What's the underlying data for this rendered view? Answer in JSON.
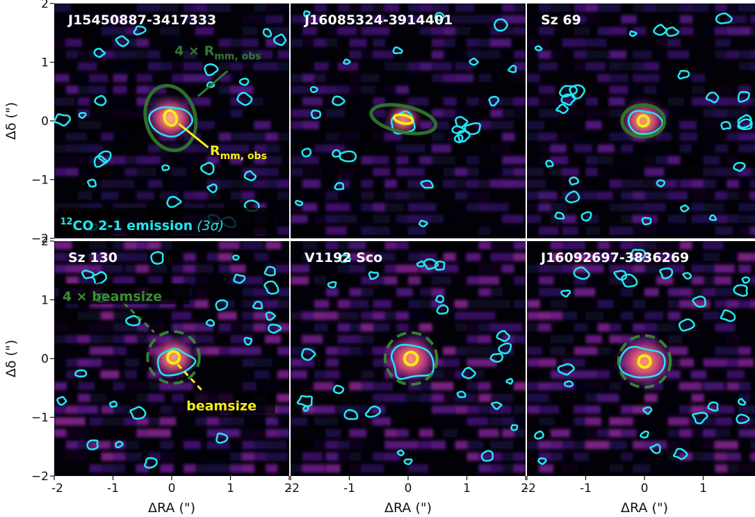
{
  "chart_data": {
    "type": "heatmap",
    "xlabel": "ΔRA (\")",
    "ylabel": "Δδ (\")",
    "xlim": [
      -2,
      2
    ],
    "ylim": [
      -2,
      2
    ],
    "x_ticks": [
      "-2",
      "-1",
      "0",
      "1",
      "2"
    ],
    "y_ticks": [
      "2",
      "1",
      "0",
      "−1",
      "−2"
    ],
    "colormap": "magma",
    "colors": {
      "contour": "#22e5f0",
      "r_obs": "#f5ee16",
      "r4_obs": "#2f7d2a",
      "beam4": "#3a8f2e",
      "beam": "#f5ee16"
    },
    "panels": [
      {
        "title": "J15450887-3417333",
        "source_x": -0.02,
        "source_y": 0.05,
        "peak": 1.0,
        "spread": 0.32,
        "r_obs": {
          "rx": 0.1,
          "ry": 0.13,
          "angle": 20
        },
        "outer": {
          "kind": "solid",
          "rx": 0.42,
          "ry": 0.56,
          "angle": 15
        },
        "annotations": [
          {
            "text": "4 × R",
            "sub": "mm, obs",
            "color": "#2f7d2a"
          },
          {
            "text": "R",
            "sub": "mm, obs",
            "color": "#f5ee16"
          },
          {
            "text": "CO 2-1 emission",
            "prefix": "12",
            "suffix": "(3σ)",
            "color": "#22e5f0"
          }
        ]
      },
      {
        "title": "J16085324-3914401",
        "source_x": -0.08,
        "source_y": 0.03,
        "peak": 0.95,
        "spread": 0.22,
        "r_obs": {
          "rx": 0.16,
          "ry": 0.07,
          "angle": -12
        },
        "outer": {
          "kind": "solid",
          "rx": 0.56,
          "ry": 0.22,
          "angle": -12
        },
        "annotations": []
      },
      {
        "title": "Sz 69",
        "source_x": -0.02,
        "source_y": 0.0,
        "peak": 0.95,
        "spread": 0.3,
        "r_obs": {
          "rx": 0.09,
          "ry": 0.09,
          "angle": 0
        },
        "outer": {
          "kind": "solid",
          "rx": 0.36,
          "ry": 0.27,
          "angle": 0
        },
        "annotations": []
      },
      {
        "title": "Sz 130",
        "source_x": 0.03,
        "source_y": 0.02,
        "peak": 0.95,
        "spread": 0.3,
        "r_obs": {
          "rx": 0.1,
          "ry": 0.1,
          "angle": 0
        },
        "outer": {
          "kind": "dashed",
          "rx": 0.44,
          "ry": 0.44,
          "angle": 0
        },
        "annotations": [
          {
            "text": "4 × beamsize",
            "color": "#3a8f2e"
          },
          {
            "text": "beamsize",
            "color": "#f5ee16"
          }
        ]
      },
      {
        "title": "V1192 Sco",
        "source_x": 0.05,
        "source_y": 0.0,
        "peak": 0.9,
        "spread": 0.35,
        "r_obs": {
          "rx": 0.11,
          "ry": 0.11,
          "angle": 0
        },
        "outer": {
          "kind": "dashed",
          "rx": 0.44,
          "ry": 0.44,
          "angle": 0
        },
        "annotations": []
      },
      {
        "title": "J16092697-3836269",
        "source_x": 0.0,
        "source_y": -0.05,
        "peak": 0.9,
        "spread": 0.38,
        "r_obs": {
          "rx": 0.1,
          "ry": 0.1,
          "angle": 0
        },
        "outer": {
          "kind": "dashed",
          "rx": 0.44,
          "ry": 0.44,
          "angle": 0
        },
        "annotations": []
      }
    ]
  }
}
